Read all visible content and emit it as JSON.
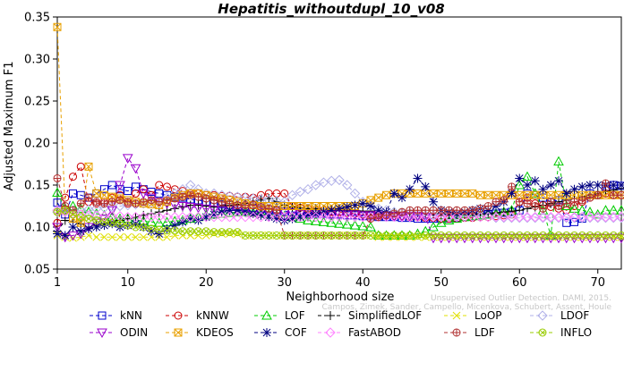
{
  "chart_data": {
    "type": "line",
    "title": "Hepatitis_withoutdupl_10_v08",
    "xlabel": "Neighborhood size",
    "ylabel": "Adjusted Maximum F1",
    "xlim": [
      1,
      73
    ],
    "ylim": [
      0.05,
      0.35
    ],
    "xticks": [
      1,
      10,
      20,
      30,
      40,
      50,
      60,
      70
    ],
    "yticks": [
      0.05,
      0.1,
      0.15,
      0.2,
      0.25,
      0.3,
      0.35
    ],
    "ytick_labels": [
      "0.05",
      "0.10",
      "0.15",
      "0.20",
      "0.25",
      "0.30",
      "0.35"
    ],
    "grid": false,
    "legend_position": "bottom",
    "watermark": [
      "Unsupervised Outlier Detection. DAMI, 2015.",
      "Campos, Zimek, Sander, Campello, Micenkova, Schubert, Assent, Houle"
    ],
    "x": [
      1,
      2,
      3,
      4,
      5,
      6,
      7,
      8,
      9,
      10,
      11,
      12,
      13,
      14,
      15,
      16,
      17,
      18,
      19,
      20,
      21,
      22,
      23,
      24,
      25,
      26,
      27,
      28,
      29,
      30,
      31,
      32,
      33,
      34,
      35,
      36,
      37,
      38,
      39,
      40,
      41,
      42,
      43,
      44,
      45,
      46,
      47,
      48,
      49,
      50,
      51,
      52,
      53,
      54,
      55,
      56,
      57,
      58,
      59,
      60,
      61,
      62,
      63,
      64,
      65,
      66,
      67,
      68,
      69,
      70,
      71,
      72,
      73
    ],
    "series": [
      {
        "name": "kNN",
        "color": "#0000cc",
        "marker": "square",
        "values": [
          0.129,
          0.115,
          0.14,
          0.138,
          0.135,
          0.14,
          0.145,
          0.15,
          0.145,
          0.143,
          0.148,
          0.145,
          0.142,
          0.14,
          0.138,
          0.136,
          0.135,
          0.133,
          0.132,
          0.13,
          0.128,
          0.127,
          0.126,
          0.125,
          0.124,
          0.123,
          0.122,
          0.121,
          0.12,
          0.119,
          0.118,
          0.118,
          0.117,
          0.116,
          0.116,
          0.115,
          0.115,
          0.114,
          0.114,
          0.113,
          0.113,
          0.112,
          0.112,
          0.112,
          0.111,
          0.111,
          0.11,
          0.11,
          0.11,
          0.11,
          0.11,
          0.111,
          0.112,
          0.113,
          0.114,
          0.115,
          0.116,
          0.117,
          0.118,
          0.12,
          0.14,
          0.138,
          0.135,
          0.13,
          0.132,
          0.105,
          0.106,
          0.11,
          0.14,
          0.138,
          0.148,
          0.15,
          0.149
        ]
      },
      {
        "name": "kNNW",
        "color": "#cc0000",
        "marker": "circle",
        "values": [
          0.105,
          0.135,
          0.16,
          0.172,
          0.13,
          0.128,
          0.13,
          0.135,
          0.138,
          0.128,
          0.14,
          0.145,
          0.138,
          0.15,
          0.148,
          0.145,
          0.143,
          0.14,
          0.14,
          0.138,
          0.138,
          0.137,
          0.137,
          0.136,
          0.136,
          0.135,
          0.138,
          0.14,
          0.14,
          0.14,
          0.125,
          0.123,
          0.122,
          0.12,
          0.12,
          0.118,
          0.118,
          0.117,
          0.116,
          0.115,
          0.115,
          0.114,
          0.114,
          0.113,
          0.113,
          0.112,
          0.112,
          0.111,
          0.111,
          0.11,
          0.11,
          0.11,
          0.111,
          0.111,
          0.112,
          0.112,
          0.113,
          0.114,
          0.115,
          0.13,
          0.135,
          0.128,
          0.126,
          0.124,
          0.122,
          0.12,
          0.125,
          0.13,
          0.135,
          0.138,
          0.14,
          0.138,
          0.138
        ]
      },
      {
        "name": "LOF",
        "color": "#00cc00",
        "marker": "triangle-up",
        "values": [
          0.141,
          0.122,
          0.125,
          0.122,
          0.118,
          0.116,
          0.114,
          0.112,
          0.11,
          0.11,
          0.108,
          0.107,
          0.106,
          0.105,
          0.106,
          0.107,
          0.108,
          0.11,
          0.112,
          0.114,
          0.115,
          0.116,
          0.117,
          0.118,
          0.118,
          0.117,
          0.116,
          0.115,
          0.114,
          0.113,
          0.112,
          0.11,
          0.108,
          0.107,
          0.106,
          0.105,
          0.104,
          0.103,
          0.102,
          0.101,
          0.1,
          0.09,
          0.09,
          0.09,
          0.09,
          0.09,
          0.092,
          0.095,
          0.1,
          0.105,
          0.108,
          0.11,
          0.112,
          0.113,
          0.114,
          0.115,
          0.116,
          0.118,
          0.12,
          0.15,
          0.16,
          0.14,
          0.12,
          0.09,
          0.178,
          0.125,
          0.122,
          0.12,
          0.118,
          0.115,
          0.12,
          0.12,
          0.12
        ]
      },
      {
        "name": "SimplifiedLOF",
        "color": "#000000",
        "marker": "plus",
        "values": [
          0.095,
          0.108,
          0.106,
          0.104,
          0.1,
          0.102,
          0.104,
          0.106,
          0.108,
          0.11,
          0.112,
          0.114,
          0.116,
          0.118,
          0.12,
          0.122,
          0.124,
          0.126,
          0.126,
          0.125,
          0.124,
          0.125,
          0.126,
          0.127,
          0.128,
          0.13,
          0.132,
          0.134,
          0.13,
          0.126,
          0.124,
          0.123,
          0.122,
          0.122,
          0.121,
          0.121,
          0.12,
          0.12,
          0.12,
          0.119,
          0.119,
          0.118,
          0.118,
          0.118,
          0.117,
          0.117,
          0.117,
          0.116,
          0.116,
          0.116,
          0.115,
          0.115,
          0.115,
          0.115,
          0.116,
          0.116,
          0.117,
          0.118,
          0.119,
          0.12,
          0.122,
          0.124,
          0.126,
          0.128,
          0.13,
          0.132,
          0.134,
          0.136,
          0.138,
          0.14,
          0.142,
          0.144,
          0.146
        ]
      },
      {
        "name": "LoOP",
        "color": "#e0e000",
        "marker": "x",
        "values": [
          0.09,
          0.088,
          0.087,
          0.088,
          0.09,
          0.088,
          0.088,
          0.088,
          0.088,
          0.088,
          0.088,
          0.088,
          0.088,
          0.088,
          0.088,
          0.09,
          0.09,
          0.09,
          0.09,
          0.09,
          0.092,
          0.092,
          0.092,
          0.092,
          0.09,
          0.09,
          0.09,
          0.09,
          0.09,
          0.09,
          0.09,
          0.09,
          0.09,
          0.09,
          0.09,
          0.09,
          0.09,
          0.09,
          0.09,
          0.09,
          0.09,
          0.088,
          0.088,
          0.088,
          0.088,
          0.088,
          0.088,
          0.088,
          0.088,
          0.088,
          0.088,
          0.088,
          0.088,
          0.088,
          0.088,
          0.088,
          0.088,
          0.088,
          0.088,
          0.088,
          0.088,
          0.088,
          0.088,
          0.088,
          0.088,
          0.088,
          0.088,
          0.088,
          0.088,
          0.088,
          0.088,
          0.088,
          0.088
        ]
      },
      {
        "name": "LDOF",
        "color": "#b0b0e8",
        "marker": "diamond",
        "values": [
          0.118,
          0.118,
          0.12,
          0.12,
          0.121,
          0.122,
          0.123,
          0.124,
          0.125,
          0.126,
          0.127,
          0.128,
          0.129,
          0.13,
          0.135,
          0.14,
          0.145,
          0.15,
          0.145,
          0.14,
          0.14,
          0.138,
          0.137,
          0.136,
          0.135,
          0.134,
          0.133,
          0.132,
          0.131,
          0.13,
          0.138,
          0.142,
          0.145,
          0.15,
          0.153,
          0.155,
          0.156,
          0.15,
          0.14,
          0.13,
          0.125,
          0.122,
          0.12,
          0.118,
          0.117,
          0.116,
          0.115,
          0.114,
          0.114,
          0.113,
          0.113,
          0.113,
          0.112,
          0.112,
          0.112,
          0.112,
          0.111,
          0.111,
          0.111,
          0.111,
          0.111,
          0.111,
          0.111,
          0.111,
          0.111,
          0.111,
          0.111,
          0.111,
          0.111,
          0.111,
          0.111,
          0.111,
          0.111
        ]
      },
      {
        "name": "ODIN",
        "color": "#9900cc",
        "marker": "triangle-down",
        "values": [
          0.1,
          0.088,
          0.09,
          0.092,
          0.1,
          0.105,
          0.11,
          0.12,
          0.15,
          0.182,
          0.17,
          0.14,
          0.135,
          0.13,
          0.128,
          0.126,
          0.125,
          0.124,
          0.123,
          0.122,
          0.121,
          0.12,
          0.12,
          0.119,
          0.119,
          0.118,
          0.118,
          0.118,
          0.117,
          0.117,
          0.117,
          0.116,
          0.116,
          0.116,
          0.116,
          0.115,
          0.115,
          0.115,
          0.115,
          0.114,
          0.114,
          0.114,
          0.114,
          0.113,
          0.113,
          0.113,
          0.113,
          0.112,
          0.087,
          0.087,
          0.087,
          0.087,
          0.087,
          0.087,
          0.087,
          0.087,
          0.087,
          0.087,
          0.087,
          0.087,
          0.087,
          0.087,
          0.087,
          0.087,
          0.087,
          0.087,
          0.087,
          0.087,
          0.087,
          0.087,
          0.087,
          0.087,
          0.087
        ]
      },
      {
        "name": "KDEOS",
        "color": "#e8a000",
        "marker": "square-x",
        "values": [
          0.338,
          0.12,
          0.11,
          0.105,
          0.172,
          0.14,
          0.138,
          0.136,
          0.134,
          0.132,
          0.13,
          0.128,
          0.127,
          0.126,
          0.13,
          0.135,
          0.138,
          0.14,
          0.14,
          0.138,
          0.136,
          0.134,
          0.132,
          0.13,
          0.128,
          0.126,
          0.125,
          0.125,
          0.125,
          0.125,
          0.125,
          0.125,
          0.125,
          0.125,
          0.125,
          0.125,
          0.125,
          0.125,
          0.125,
          0.128,
          0.132,
          0.135,
          0.138,
          0.14,
          0.14,
          0.14,
          0.14,
          0.14,
          0.14,
          0.14,
          0.14,
          0.14,
          0.14,
          0.14,
          0.138,
          0.138,
          0.138,
          0.138,
          0.138,
          0.138,
          0.138,
          0.138,
          0.138,
          0.138,
          0.138,
          0.138,
          0.138,
          0.138,
          0.138,
          0.138,
          0.138,
          0.138,
          0.138
        ]
      },
      {
        "name": "COF",
        "color": "#000080",
        "marker": "asterisk",
        "values": [
          0.092,
          0.09,
          0.1,
          0.095,
          0.098,
          0.1,
          0.102,
          0.104,
          0.1,
          0.102,
          0.104,
          0.1,
          0.095,
          0.092,
          0.098,
          0.102,
          0.106,
          0.11,
          0.108,
          0.112,
          0.115,
          0.118,
          0.12,
          0.12,
          0.118,
          0.116,
          0.114,
          0.112,
          0.11,
          0.108,
          0.11,
          0.112,
          0.114,
          0.116,
          0.118,
          0.12,
          0.122,
          0.124,
          0.126,
          0.128,
          0.125,
          0.12,
          0.118,
          0.14,
          0.135,
          0.145,
          0.158,
          0.148,
          0.13,
          0.12,
          0.118,
          0.116,
          0.118,
          0.12,
          0.122,
          0.12,
          0.125,
          0.13,
          0.14,
          0.158,
          0.15,
          0.155,
          0.145,
          0.15,
          0.155,
          0.14,
          0.145,
          0.148,
          0.15,
          0.15,
          0.15,
          0.15,
          0.15
        ]
      },
      {
        "name": "FastABOD",
        "color": "#ff80ff",
        "marker": "diamond",
        "values": [
          0.12,
          0.118,
          0.116,
          0.115,
          0.114,
          0.114,
          0.113,
          0.113,
          0.113,
          0.112,
          0.112,
          0.112,
          0.112,
          0.112,
          0.112,
          0.112,
          0.112,
          0.112,
          0.112,
          0.112,
          0.112,
          0.112,
          0.112,
          0.112,
          0.112,
          0.112,
          0.112,
          0.112,
          0.112,
          0.112,
          0.112,
          0.112,
          0.112,
          0.112,
          0.112,
          0.112,
          0.112,
          0.112,
          0.112,
          0.112,
          0.112,
          0.112,
          0.112,
          0.112,
          0.112,
          0.112,
          0.112,
          0.112,
          0.112,
          0.112,
          0.112,
          0.112,
          0.112,
          0.112,
          0.112,
          0.112,
          0.112,
          0.112,
          0.112,
          0.112,
          0.112,
          0.112,
          0.112,
          0.112,
          0.112,
          0.112,
          0.112,
          0.112,
          0.112,
          0.112,
          0.112,
          0.112,
          0.112
        ]
      },
      {
        "name": "LDF",
        "color": "#b03030",
        "marker": "circle-plus",
        "values": [
          0.158,
          0.125,
          0.12,
          0.128,
          0.135,
          0.13,
          0.128,
          0.13,
          0.132,
          0.13,
          0.128,
          0.13,
          0.132,
          0.13,
          0.132,
          0.134,
          0.136,
          0.138,
          0.136,
          0.134,
          0.132,
          0.13,
          0.128,
          0.126,
          0.126,
          0.126,
          0.124,
          0.122,
          0.12,
          0.09,
          0.09,
          0.09,
          0.09,
          0.09,
          0.09,
          0.09,
          0.09,
          0.09,
          0.09,
          0.09,
          0.11,
          0.112,
          0.114,
          0.116,
          0.118,
          0.12,
          0.12,
          0.12,
          0.12,
          0.12,
          0.12,
          0.12,
          0.12,
          0.12,
          0.122,
          0.125,
          0.13,
          0.132,
          0.148,
          0.13,
          0.128,
          0.125,
          0.122,
          0.13,
          0.125,
          0.128,
          0.13,
          0.132,
          0.135,
          0.138,
          0.152,
          0.138,
          0.138
        ]
      },
      {
        "name": "INFLO",
        "color": "#99cc00",
        "marker": "circle-x",
        "values": [
          0.118,
          0.12,
          0.115,
          0.112,
          0.11,
          0.108,
          0.106,
          0.105,
          0.104,
          0.102,
          0.1,
          0.1,
          0.098,
          0.097,
          0.096,
          0.096,
          0.095,
          0.095,
          0.095,
          0.095,
          0.094,
          0.094,
          0.094,
          0.094,
          0.09,
          0.09,
          0.09,
          0.09,
          0.09,
          0.09,
          0.09,
          0.09,
          0.09,
          0.09,
          0.09,
          0.09,
          0.09,
          0.09,
          0.09,
          0.09,
          0.09,
          0.09,
          0.09,
          0.09,
          0.09,
          0.09,
          0.09,
          0.09,
          0.09,
          0.09,
          0.09,
          0.09,
          0.09,
          0.09,
          0.09,
          0.09,
          0.09,
          0.09,
          0.09,
          0.09,
          0.09,
          0.09,
          0.09,
          0.09,
          0.09,
          0.09,
          0.09,
          0.09,
          0.09,
          0.09,
          0.09,
          0.09,
          0.09
        ]
      }
    ]
  }
}
